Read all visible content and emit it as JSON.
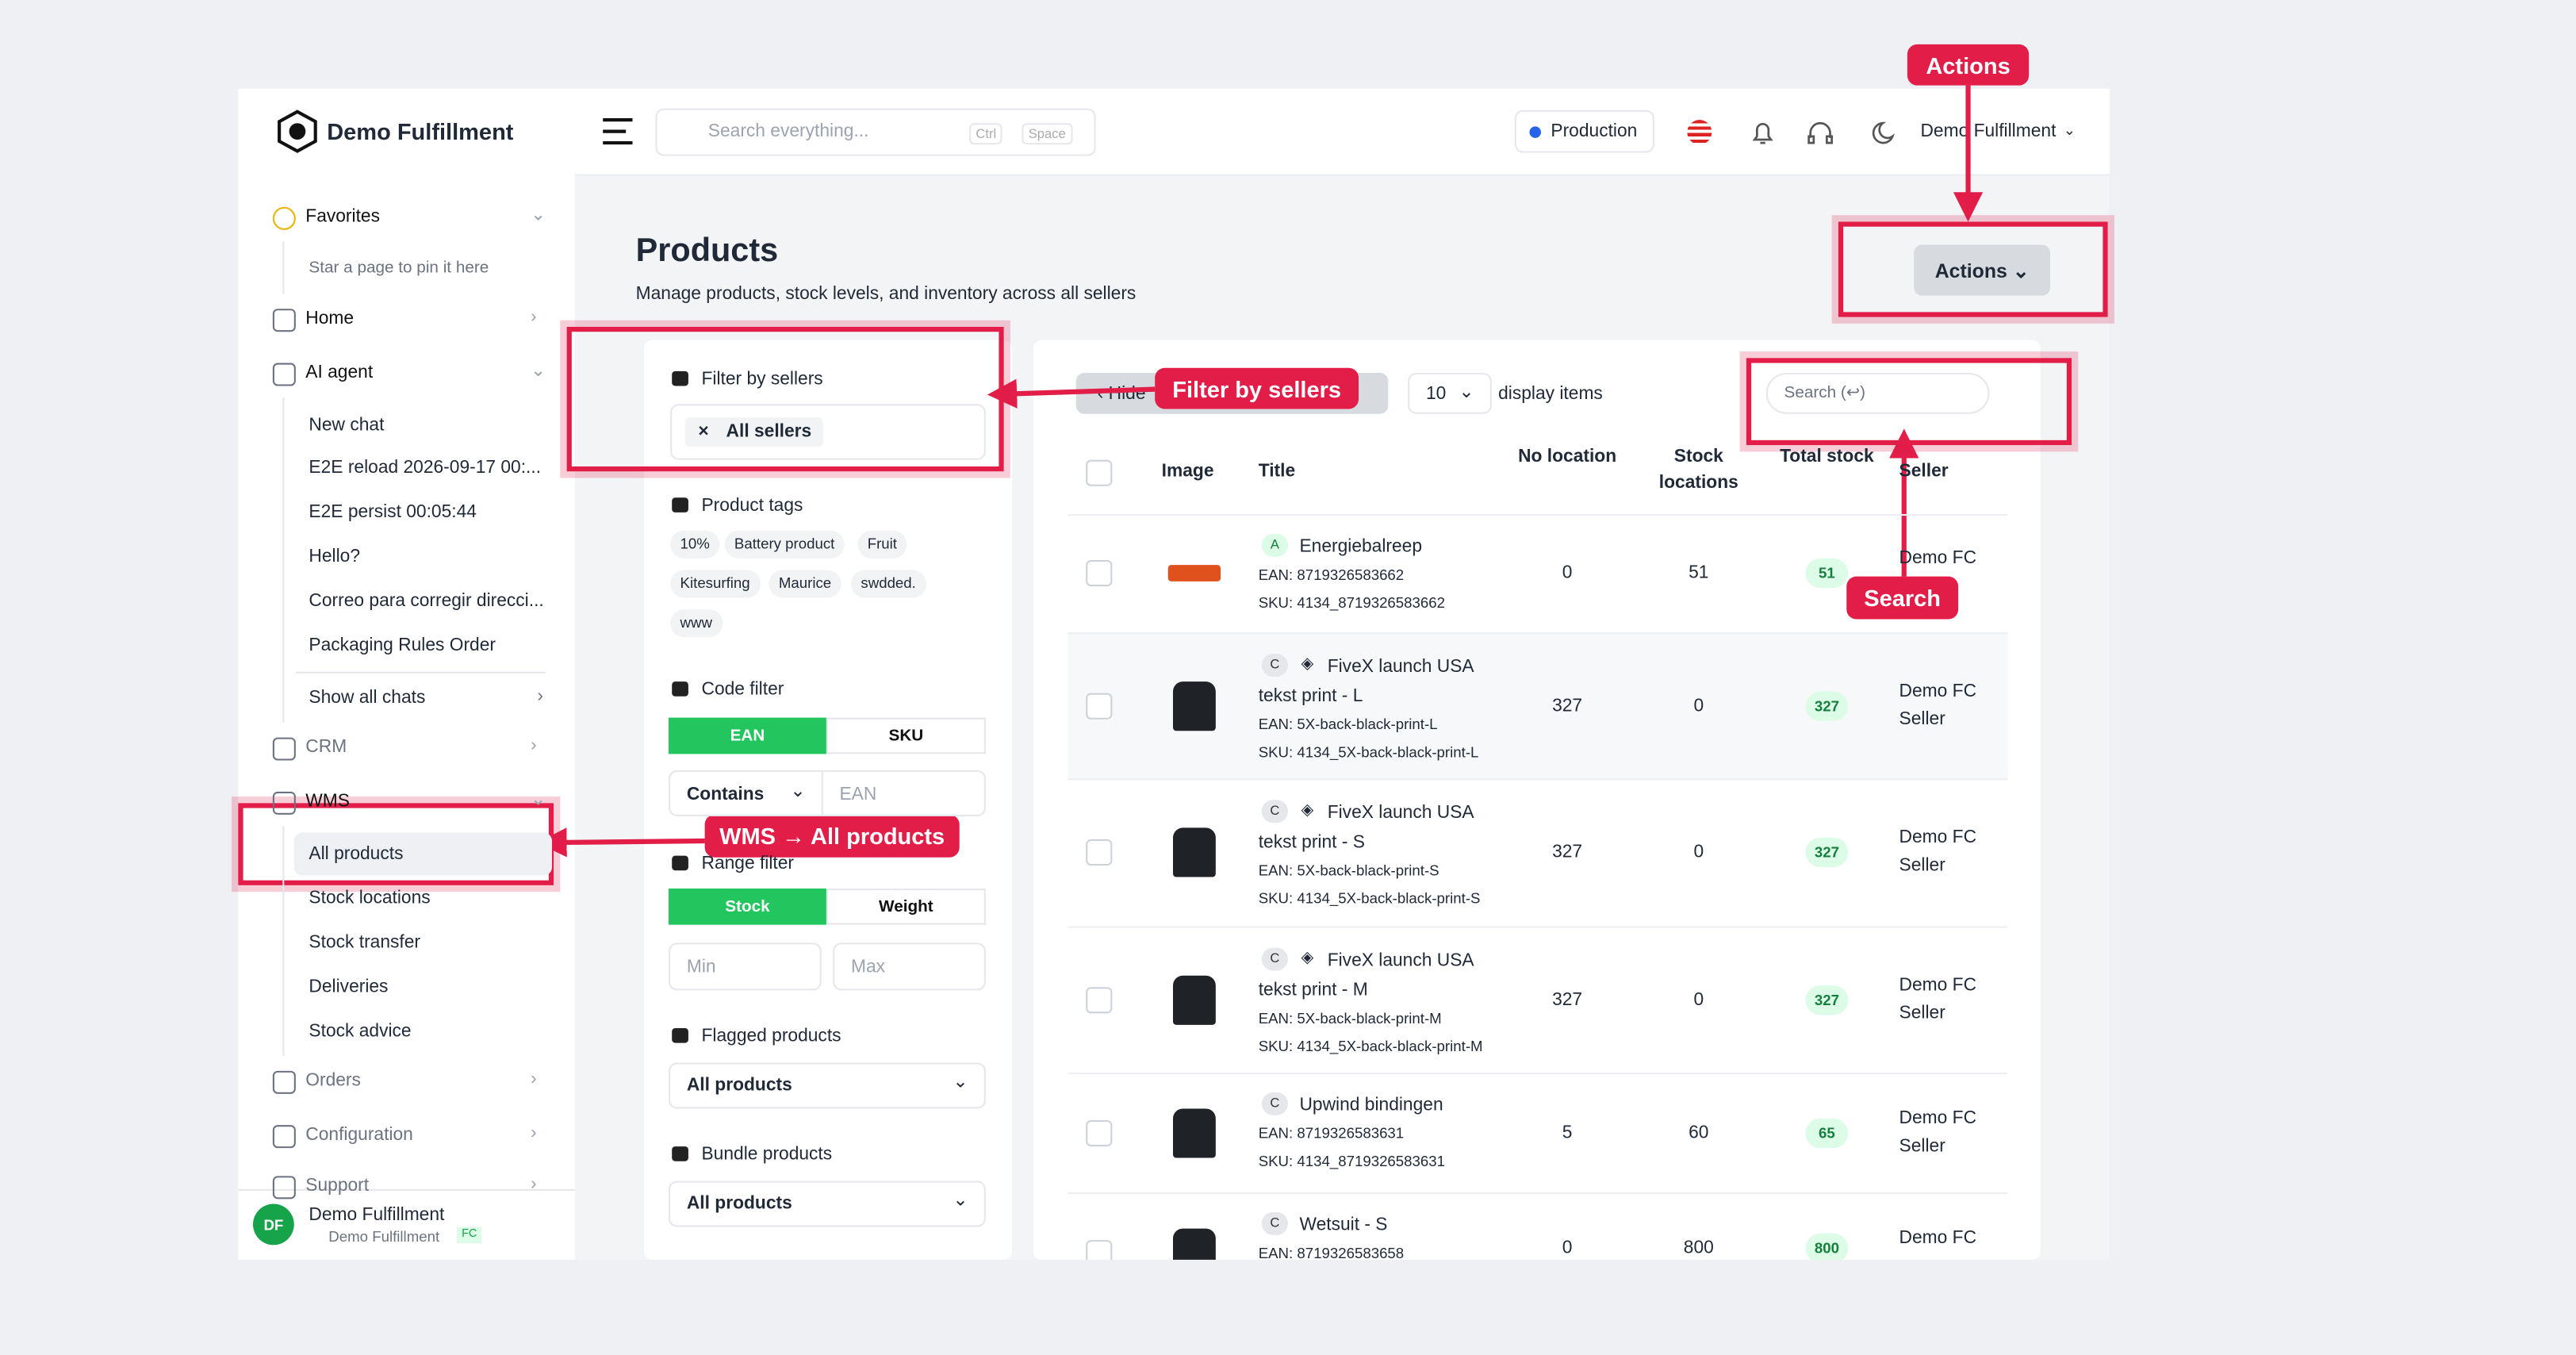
{
  "header": {
    "brand": "Demo Fulfillment",
    "search_placeholder": "Search everything...",
    "keys": [
      "Ctrl",
      "Space"
    ],
    "environment": "Production",
    "user": "Demo Fulfillment"
  },
  "sidebar": {
    "sections": [
      {
        "label": "Favorites",
        "items": [
          "Star a page to pin it here"
        ]
      },
      {
        "label": "Home",
        "items": []
      },
      {
        "label": "AI agent",
        "items": [
          "New chat",
          "E2E reload 2026-09-17 00:...",
          "E2E persist 00:05:44",
          "Hello?",
          "Correo para corregir direcci...",
          "Packaging Rules Order",
          "Show all chats"
        ]
      },
      {
        "label": "CRM",
        "items": []
      },
      {
        "label": "WMS",
        "items": [
          "All products",
          "Stock locations",
          "Stock transfer",
          "Deliveries",
          "Stock advice"
        ]
      },
      {
        "label": "Orders",
        "items": []
      },
      {
        "label": "Configuration",
        "items": []
      },
      {
        "label": "Support",
        "items": []
      }
    ],
    "footer": {
      "initials": "DF",
      "name": "Demo Fulfillment",
      "org": "Demo Fulfillment",
      "badge": "FC"
    }
  },
  "page": {
    "title": "Products",
    "subtitle": "Manage products, stock levels, and inventory across all sellers",
    "actions": "Actions"
  },
  "filters": {
    "sellers": {
      "label": "Filter by sellers",
      "chip": "All sellers"
    },
    "tags": {
      "label": "Product tags",
      "items": [
        "10%",
        "Battery product",
        "Fruit",
        "Kitesurfing",
        "Maurice",
        "swdded.",
        "www"
      ]
    },
    "code": {
      "label": "Code filter",
      "tabs": [
        "EAN",
        "SKU"
      ],
      "mode": "Contains",
      "placeholder": "EAN"
    },
    "range": {
      "label": "Range filter",
      "tabs": [
        "Stock",
        "Weight"
      ],
      "min": "Min",
      "max": "Max"
    },
    "flagged": {
      "label": "Flagged products",
      "value": "All products"
    },
    "bundle": {
      "label": "Bundle products",
      "value": "All products"
    }
  },
  "table": {
    "hide": "Hide",
    "page_size": "10",
    "page_size_label": "display items",
    "search_placeholder": "Search (↩)",
    "headers": [
      "Image",
      "Title",
      "No location",
      "Stock locations",
      "Total stock",
      "Seller"
    ],
    "rows": [
      {
        "badge": "A",
        "title": "Energiebalreep",
        "ean": "EAN: 8719326583662",
        "sku": "SKU: 4134_8719326583662",
        "no_location": "0",
        "stock_locations": "51",
        "total_stock": "51",
        "seller": "Demo FC"
      },
      {
        "badge": "C",
        "title": "FiveX launch USA tekst print - L",
        "ean": "EAN: 5X-back-black-print-L",
        "sku": "SKU: 4134_5X-back-black-print-L",
        "no_location": "327",
        "stock_locations": "0",
        "total_stock": "327",
        "seller": "Demo FC Seller"
      },
      {
        "badge": "C",
        "title": "FiveX launch USA tekst print - S",
        "ean": "EAN: 5X-back-black-print-S",
        "sku": "SKU: 4134_5X-back-black-print-S",
        "no_location": "327",
        "stock_locations": "0",
        "total_stock": "327",
        "seller": "Demo FC Seller"
      },
      {
        "badge": "C",
        "title": "FiveX launch USA tekst print - M",
        "ean": "EAN: 5X-back-black-print-M",
        "sku": "SKU: 4134_5X-back-black-print-M",
        "no_location": "327",
        "stock_locations": "0",
        "total_stock": "327",
        "seller": "Demo FC Seller"
      },
      {
        "badge": "C",
        "title": "Upwind bindingen",
        "ean": "EAN: 8719326583631",
        "sku": "SKU: 4134_8719326583631",
        "no_location": "5",
        "stock_locations": "60",
        "total_stock": "65",
        "seller": "Demo FC Seller"
      },
      {
        "badge": "C",
        "title": "Wetsuit - S",
        "ean": "EAN: 8719326583658",
        "sku": "",
        "no_location": "0",
        "stock_locations": "800",
        "total_stock": "800",
        "seller": "Demo FC"
      }
    ]
  },
  "annotations": {
    "actions": "Actions",
    "sellers": "Filter by sellers",
    "wms": "WMS → All products",
    "search": "Search"
  }
}
